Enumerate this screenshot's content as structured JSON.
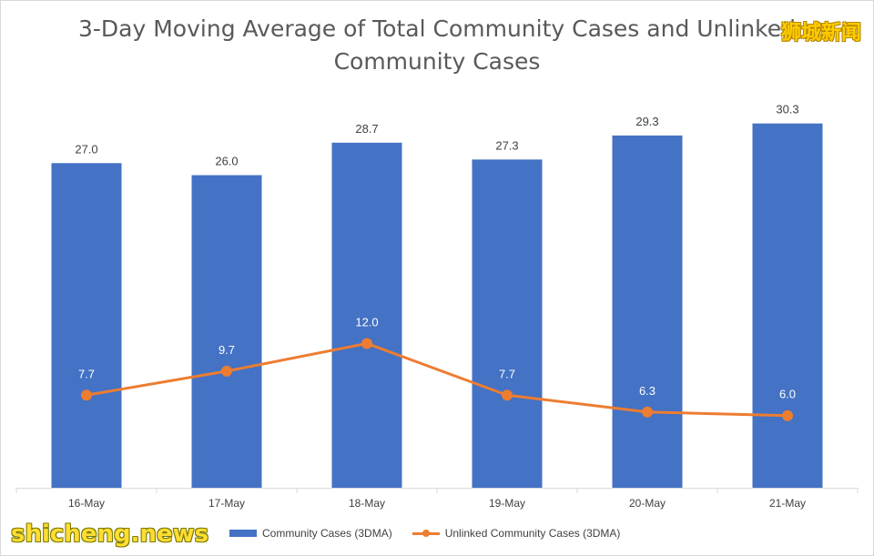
{
  "watermarks": {
    "cn": "狮城新闻",
    "en": "shicheng.news"
  },
  "chart_data": {
    "type": "bar",
    "title_lines": [
      "3-Day Moving Average of Total Community Cases and Unlinked",
      "Community Cases"
    ],
    "categories": [
      "16-May",
      "17-May",
      "18-May",
      "19-May",
      "20-May",
      "21-May"
    ],
    "series": [
      {
        "name": "Community Cases (3DMA)",
        "type": "bar",
        "color": "#4472c4",
        "values": [
          27.0,
          26.0,
          28.7,
          27.3,
          29.3,
          30.3
        ],
        "labels": [
          "27.0",
          "26.0",
          "28.7",
          "27.3",
          "29.3",
          "30.3"
        ]
      },
      {
        "name": "Unlinked Community Cases (3DMA)",
        "type": "line",
        "color": "#ed7d31",
        "values": [
          7.7,
          9.7,
          12.0,
          7.7,
          6.3,
          6.0
        ],
        "labels": [
          "7.7",
          "9.7",
          "12.0",
          "7.7",
          "6.3",
          "6.0"
        ]
      }
    ],
    "ylim": [
      0,
      33
    ],
    "xlabel": "",
    "ylabel": "",
    "grid": false,
    "legend": "bottom"
  }
}
